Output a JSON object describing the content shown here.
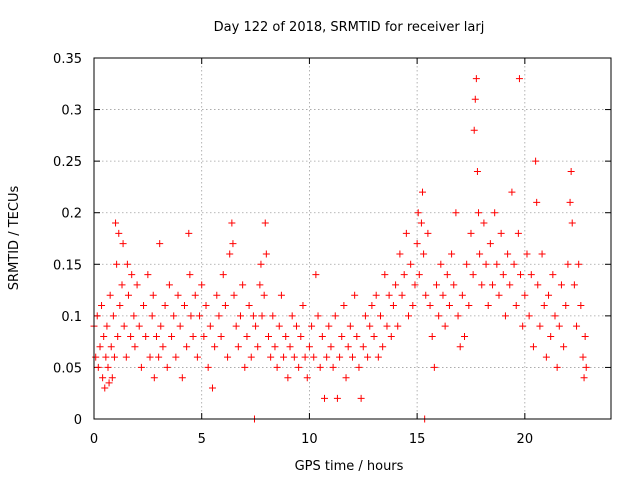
{
  "chart_data": {
    "type": "scatter",
    "title": "Day 122 of 2018, SRMTID for receiver larj",
    "xlabel": "GPS time / hours",
    "ylabel": "SRMTID / TECUs",
    "xlim": [
      0,
      24
    ],
    "ylim": [
      0,
      0.35
    ],
    "xticks": [
      0,
      5,
      10,
      15,
      20
    ],
    "xtick_labels": [
      "0",
      "5",
      "10",
      "15",
      "20"
    ],
    "yticks": [
      0,
      0.05,
      0.1,
      0.15,
      0.2,
      0.25,
      0.3,
      0.35
    ],
    "ytick_labels": [
      "0",
      "0.05",
      "0.1",
      "0.15",
      "0.2",
      "0.25",
      "0.3",
      "0.35"
    ],
    "grid": true,
    "marker": "+",
    "color": "#ff0000",
    "series": [
      {
        "name": "SRMTID",
        "points": [
          [
            0.0,
            0.09
          ],
          [
            0.08,
            0.06
          ],
          [
            0.15,
            0.1
          ],
          [
            0.2,
            0.05
          ],
          [
            0.28,
            0.07
          ],
          [
            0.35,
            0.11
          ],
          [
            0.4,
            0.04
          ],
          [
            0.45,
            0.08
          ],
          [
            0.5,
            0.03
          ],
          [
            0.55,
            0.06
          ],
          [
            0.6,
            0.09
          ],
          [
            0.65,
            0.05
          ],
          [
            0.7,
            0.035
          ],
          [
            0.75,
            0.12
          ],
          [
            0.8,
            0.07
          ],
          [
            0.85,
            0.04
          ],
          [
            0.9,
            0.1
          ],
          [
            0.95,
            0.06
          ],
          [
            1.0,
            0.19
          ],
          [
            1.05,
            0.15
          ],
          [
            1.1,
            0.08
          ],
          [
            1.15,
            0.18
          ],
          [
            1.2,
            0.11
          ],
          [
            1.3,
            0.13
          ],
          [
            1.35,
            0.17
          ],
          [
            1.4,
            0.09
          ],
          [
            1.5,
            0.06
          ],
          [
            1.55,
            0.15
          ],
          [
            1.6,
            0.12
          ],
          [
            1.7,
            0.08
          ],
          [
            1.75,
            0.14
          ],
          [
            1.85,
            0.1
          ],
          [
            1.9,
            0.07
          ],
          [
            2.0,
            0.13
          ],
          [
            2.1,
            0.09
          ],
          [
            2.2,
            0.05
          ],
          [
            2.3,
            0.11
          ],
          [
            2.4,
            0.08
          ],
          [
            2.5,
            0.14
          ],
          [
            2.6,
            0.06
          ],
          [
            2.7,
            0.1
          ],
          [
            2.75,
            0.12
          ],
          [
            2.8,
            0.04
          ],
          [
            2.9,
            0.08
          ],
          [
            3.0,
            0.06
          ],
          [
            3.05,
            0.17
          ],
          [
            3.1,
            0.09
          ],
          [
            3.2,
            0.07
          ],
          [
            3.3,
            0.11
          ],
          [
            3.4,
            0.05
          ],
          [
            3.5,
            0.13
          ],
          [
            3.6,
            0.08
          ],
          [
            3.7,
            0.1
          ],
          [
            3.8,
            0.06
          ],
          [
            3.9,
            0.12
          ],
          [
            4.0,
            0.09
          ],
          [
            4.1,
            0.04
          ],
          [
            4.2,
            0.11
          ],
          [
            4.3,
            0.07
          ],
          [
            4.4,
            0.18
          ],
          [
            4.45,
            0.14
          ],
          [
            4.5,
            0.1
          ],
          [
            4.6,
            0.08
          ],
          [
            4.7,
            0.12
          ],
          [
            4.8,
            0.06
          ],
          [
            4.9,
            0.1
          ],
          [
            5.0,
            0.13
          ],
          [
            5.1,
            0.08
          ],
          [
            5.2,
            0.11
          ],
          [
            5.3,
            0.05
          ],
          [
            5.4,
            0.09
          ],
          [
            5.5,
            0.03
          ],
          [
            5.6,
            0.07
          ],
          [
            5.7,
            0.12
          ],
          [
            5.8,
            0.1
          ],
          [
            5.9,
            0.08
          ],
          [
            6.0,
            0.14
          ],
          [
            6.1,
            0.11
          ],
          [
            6.2,
            0.06
          ],
          [
            6.3,
            0.16
          ],
          [
            6.4,
            0.19
          ],
          [
            6.45,
            0.17
          ],
          [
            6.5,
            0.12
          ],
          [
            6.6,
            0.09
          ],
          [
            6.7,
            0.07
          ],
          [
            6.8,
            0.1
          ],
          [
            6.9,
            0.13
          ],
          [
            7.0,
            0.05
          ],
          [
            7.1,
            0.08
          ],
          [
            7.2,
            0.11
          ],
          [
            7.3,
            0.06
          ],
          [
            7.4,
            0.1
          ],
          [
            7.45,
            0.0
          ],
          [
            7.5,
            0.09
          ],
          [
            7.6,
            0.07
          ],
          [
            7.7,
            0.13
          ],
          [
            7.75,
            0.15
          ],
          [
            7.8,
            0.1
          ],
          [
            7.9,
            0.12
          ],
          [
            7.95,
            0.19
          ],
          [
            8.0,
            0.16
          ],
          [
            8.1,
            0.08
          ],
          [
            8.2,
            0.06
          ],
          [
            8.3,
            0.1
          ],
          [
            8.4,
            0.07
          ],
          [
            8.5,
            0.05
          ],
          [
            8.6,
            0.09
          ],
          [
            8.7,
            0.12
          ],
          [
            8.8,
            0.06
          ],
          [
            8.9,
            0.08
          ],
          [
            9.0,
            0.04
          ],
          [
            9.1,
            0.07
          ],
          [
            9.2,
            0.1
          ],
          [
            9.3,
            0.06
          ],
          [
            9.4,
            0.09
          ],
          [
            9.5,
            0.05
          ],
          [
            9.6,
            0.08
          ],
          [
            9.7,
            0.11
          ],
          [
            9.8,
            0.06
          ],
          [
            9.9,
            0.04
          ],
          [
            10.0,
            0.07
          ],
          [
            10.1,
            0.09
          ],
          [
            10.2,
            0.06
          ],
          [
            10.3,
            0.14
          ],
          [
            10.4,
            0.1
          ],
          [
            10.5,
            0.05
          ],
          [
            10.6,
            0.08
          ],
          [
            10.7,
            0.02
          ],
          [
            10.8,
            0.06
          ],
          [
            10.9,
            0.09
          ],
          [
            11.0,
            0.07
          ],
          [
            11.1,
            0.05
          ],
          [
            11.2,
            0.1
          ],
          [
            11.3,
            0.02
          ],
          [
            11.4,
            0.06
          ],
          [
            11.5,
            0.08
          ],
          [
            11.6,
            0.11
          ],
          [
            11.7,
            0.04
          ],
          [
            11.8,
            0.07
          ],
          [
            11.9,
            0.09
          ],
          [
            12.0,
            0.06
          ],
          [
            12.1,
            0.12
          ],
          [
            12.2,
            0.08
          ],
          [
            12.3,
            0.05
          ],
          [
            12.4,
            0.02
          ],
          [
            12.5,
            0.07
          ],
          [
            12.6,
            0.1
          ],
          [
            12.7,
            0.06
          ],
          [
            12.8,
            0.09
          ],
          [
            12.9,
            0.11
          ],
          [
            13.0,
            0.08
          ],
          [
            13.1,
            0.12
          ],
          [
            13.2,
            0.06
          ],
          [
            13.3,
            0.1
          ],
          [
            13.4,
            0.07
          ],
          [
            13.5,
            0.14
          ],
          [
            13.6,
            0.09
          ],
          [
            13.7,
            0.12
          ],
          [
            13.8,
            0.08
          ],
          [
            13.9,
            0.11
          ],
          [
            14.0,
            0.13
          ],
          [
            14.1,
            0.09
          ],
          [
            14.2,
            0.16
          ],
          [
            14.3,
            0.12
          ],
          [
            14.4,
            0.14
          ],
          [
            14.5,
            0.18
          ],
          [
            14.6,
            0.1
          ],
          [
            14.7,
            0.15
          ],
          [
            14.8,
            0.11
          ],
          [
            14.9,
            0.13
          ],
          [
            15.0,
            0.17
          ],
          [
            15.05,
            0.2
          ],
          [
            15.1,
            0.14
          ],
          [
            15.2,
            0.19
          ],
          [
            15.25,
            0.22
          ],
          [
            15.3,
            0.16
          ],
          [
            15.35,
            0.0
          ],
          [
            15.4,
            0.12
          ],
          [
            15.5,
            0.18
          ],
          [
            15.6,
            0.11
          ],
          [
            15.7,
            0.08
          ],
          [
            15.8,
            0.05
          ],
          [
            15.9,
            0.13
          ],
          [
            16.0,
            0.1
          ],
          [
            16.1,
            0.15
          ],
          [
            16.2,
            0.12
          ],
          [
            16.3,
            0.09
          ],
          [
            16.4,
            0.14
          ],
          [
            16.5,
            0.11
          ],
          [
            16.6,
            0.16
          ],
          [
            16.7,
            0.13
          ],
          [
            16.8,
            0.2
          ],
          [
            16.9,
            0.1
          ],
          [
            17.0,
            0.07
          ],
          [
            17.1,
            0.12
          ],
          [
            17.2,
            0.08
          ],
          [
            17.3,
            0.15
          ],
          [
            17.4,
            0.11
          ],
          [
            17.5,
            0.18
          ],
          [
            17.6,
            0.14
          ],
          [
            17.65,
            0.28
          ],
          [
            17.7,
            0.31
          ],
          [
            17.75,
            0.33
          ],
          [
            17.8,
            0.24
          ],
          [
            17.85,
            0.2
          ],
          [
            17.9,
            0.16
          ],
          [
            18.0,
            0.13
          ],
          [
            18.1,
            0.19
          ],
          [
            18.2,
            0.15
          ],
          [
            18.3,
            0.11
          ],
          [
            18.4,
            0.17
          ],
          [
            18.5,
            0.13
          ],
          [
            18.6,
            0.2
          ],
          [
            18.7,
            0.15
          ],
          [
            18.8,
            0.12
          ],
          [
            18.9,
            0.18
          ],
          [
            19.0,
            0.14
          ],
          [
            19.1,
            0.1
          ],
          [
            19.2,
            0.16
          ],
          [
            19.3,
            0.13
          ],
          [
            19.4,
            0.22
          ],
          [
            19.5,
            0.15
          ],
          [
            19.6,
            0.11
          ],
          [
            19.7,
            0.18
          ],
          [
            19.75,
            0.33
          ],
          [
            19.8,
            0.14
          ],
          [
            19.9,
            0.09
          ],
          [
            20.0,
            0.12
          ],
          [
            20.1,
            0.16
          ],
          [
            20.2,
            0.1
          ],
          [
            20.3,
            0.14
          ],
          [
            20.4,
            0.07
          ],
          [
            20.5,
            0.25
          ],
          [
            20.55,
            0.21
          ],
          [
            20.6,
            0.13
          ],
          [
            20.7,
            0.09
          ],
          [
            20.8,
            0.16
          ],
          [
            20.9,
            0.11
          ],
          [
            21.0,
            0.06
          ],
          [
            21.1,
            0.12
          ],
          [
            21.2,
            0.08
          ],
          [
            21.3,
            0.14
          ],
          [
            21.4,
            0.1
          ],
          [
            21.5,
            0.05
          ],
          [
            21.6,
            0.09
          ],
          [
            21.7,
            0.13
          ],
          [
            21.8,
            0.07
          ],
          [
            21.9,
            0.11
          ],
          [
            22.0,
            0.15
          ],
          [
            22.1,
            0.21
          ],
          [
            22.15,
            0.24
          ],
          [
            22.2,
            0.19
          ],
          [
            22.3,
            0.13
          ],
          [
            22.4,
            0.09
          ],
          [
            22.5,
            0.15
          ],
          [
            22.6,
            0.11
          ],
          [
            22.7,
            0.06
          ],
          [
            22.75,
            0.04
          ],
          [
            22.8,
            0.08
          ],
          [
            22.85,
            0.05
          ]
        ]
      }
    ]
  }
}
